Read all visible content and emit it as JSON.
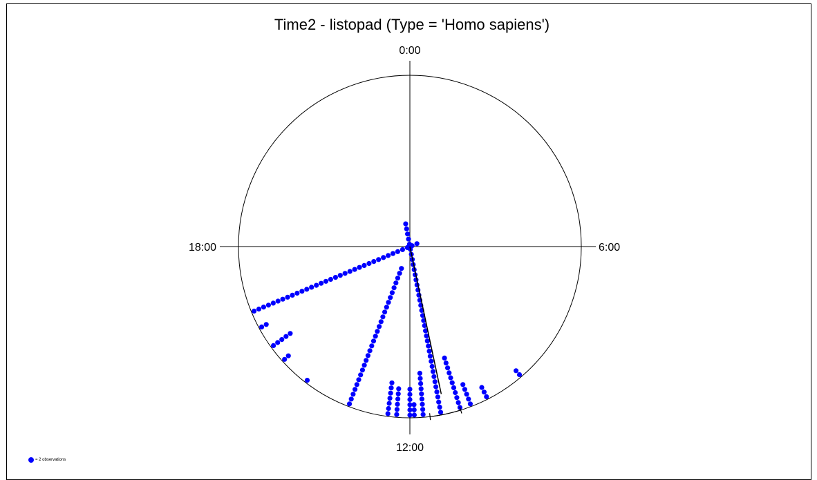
{
  "chart_data": {
    "type": "scatter",
    "subtype": "circular-time-histogram",
    "title": "Time2 - listopad (Type = 'Homo sapiens')",
    "hour_labels": [
      "0:00",
      "6:00",
      "12:00",
      "18:00"
    ],
    "dot_color": "#0000ff",
    "legend": {
      "text": "= 2 observations",
      "placement": "bottom-left"
    },
    "mean_vector": {
      "hour": 11.2,
      "length": 0.88,
      "ci_hours": [
        10.85,
        11.55
      ]
    },
    "series": [
      {
        "name": "",
        "unit": "dots (1 dot = 2 observations)",
        "points": [
          {
            "hour": 16.5,
            "count": 35
          },
          {
            "hour": 16.1,
            "count": 2
          },
          {
            "hour": 15.6,
            "count": 5
          },
          {
            "hour": 15.2,
            "count": 2
          },
          {
            "hour": 14.5,
            "count": 1
          },
          {
            "hour": 13.4,
            "count": 29
          },
          {
            "hour": 12.5,
            "count": 7
          },
          {
            "hour": 12.3,
            "count": 6
          },
          {
            "hour": 12.0,
            "count": 6
          },
          {
            "hour": 11.9,
            "count": 3
          },
          {
            "hour": 11.7,
            "count": 9
          },
          {
            "hour": 11.3,
            "count": 38
          },
          {
            "hour": 10.85,
            "count": 11
          },
          {
            "hour": 10.6,
            "count": 5
          },
          {
            "hour": 10.2,
            "count": 3
          },
          {
            "hour": 9.3,
            "count": 2
          }
        ]
      }
    ]
  }
}
